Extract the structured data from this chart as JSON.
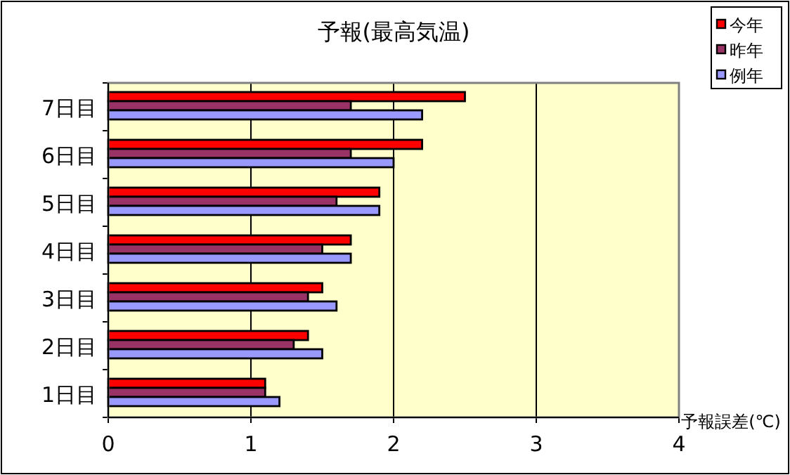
{
  "chart_data": {
    "type": "bar",
    "orientation": "horizontal",
    "title": "予報(最高気温)",
    "xlabel": "予報誤差(℃)",
    "categories": [
      "7日目",
      "6日目",
      "5日目",
      "4日目",
      "3日目",
      "2日目",
      "1日目"
    ],
    "series": [
      {
        "name": "今年",
        "color": "#ff0000",
        "values": [
          2.5,
          2.2,
          1.9,
          1.7,
          1.5,
          1.4,
          1.1
        ]
      },
      {
        "name": "昨年",
        "color": "#993366",
        "values": [
          1.7,
          1.7,
          1.6,
          1.5,
          1.4,
          1.3,
          1.1
        ]
      },
      {
        "name": "例年",
        "color": "#9999ff",
        "values": [
          2.2,
          2.0,
          1.9,
          1.7,
          1.6,
          1.5,
          1.2
        ]
      }
    ],
    "xlim": [
      0,
      4
    ],
    "xticks": [
      0,
      1,
      2,
      3,
      4
    ],
    "grid": "x",
    "legend": "top right"
  }
}
